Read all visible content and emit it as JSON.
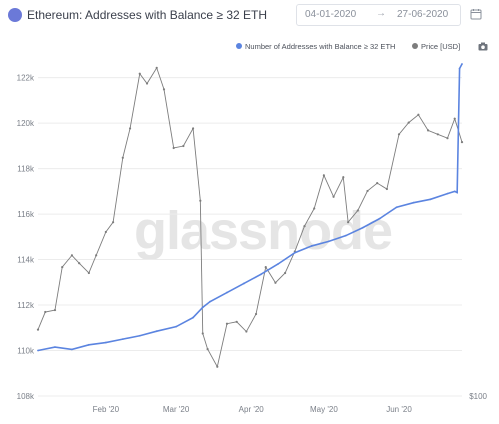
{
  "header": {
    "title": "Ethereum: Addresses with Balance ≥ 32 ETH",
    "date_start": "04-01-2020",
    "date_arrow": "→",
    "date_end": "27-06-2020"
  },
  "legend": {
    "addresses_label": "Number of Addresses with Balance ≥ 32 ETH",
    "price_label": "Price [USD]"
  },
  "watermark": "glassnode",
  "colors": {
    "addresses": "#5b84e0",
    "price": "#7d7d7d",
    "eth_icon": "#6b79d8",
    "grid": "#ececec",
    "axis_text": "#7a7f88"
  },
  "icons": {
    "ethereum": "ethereum-icon",
    "calendar": "calendar-icon",
    "camera": "camera-icon"
  },
  "chart_data": {
    "type": "line",
    "title": "Ethereum: Addresses with Balance ≥ 32 ETH",
    "y_left": {
      "ticks": [
        "108k",
        "110k",
        "112k",
        "114k",
        "116k",
        "118k",
        "120k",
        "122k"
      ],
      "tick_values": [
        108000,
        110000,
        112000,
        114000,
        116000,
        118000,
        120000,
        122000
      ],
      "range": [
        108000,
        122600
      ]
    },
    "y_right": {
      "ticks": [
        "$100"
      ],
      "tick_values": [
        100
      ],
      "range": [
        100,
        270
      ]
    },
    "x_axis": {
      "ticks": [
        "Feb '20",
        "Mar '20",
        "Apr '20",
        "May '20",
        "Jun '20"
      ],
      "tick_dates": [
        "2020-02-01",
        "2020-03-01",
        "2020-04-01",
        "2020-05-01",
        "2020-06-01"
      ],
      "range": [
        "2020-01-04",
        "2020-06-27"
      ]
    },
    "grid": "horizontal",
    "legend_position": "top-right",
    "series": [
      {
        "name": "Number of Addresses with Balance ≥ 32 ETH",
        "axis": "left",
        "x": [
          "2020-01-04",
          "2020-01-11",
          "2020-01-18",
          "2020-01-25",
          "2020-02-01",
          "2020-02-08",
          "2020-02-15",
          "2020-02-22",
          "2020-03-01",
          "2020-03-08",
          "2020-03-12",
          "2020-03-15",
          "2020-03-22",
          "2020-03-29",
          "2020-04-05",
          "2020-04-12",
          "2020-04-19",
          "2020-04-26",
          "2020-05-03",
          "2020-05-10",
          "2020-05-17",
          "2020-05-24",
          "2020-05-31",
          "2020-06-07",
          "2020-06-14",
          "2020-06-21",
          "2020-06-24",
          "2020-06-25",
          "2020-06-26",
          "2020-06-27"
        ],
        "values": [
          110000,
          110150,
          110050,
          110250,
          110350,
          110500,
          110650,
          110850,
          111050,
          111450,
          111900,
          112150,
          112550,
          112950,
          113350,
          113800,
          114300,
          114600,
          114800,
          115050,
          115400,
          115800,
          116300,
          116500,
          116650,
          116900,
          117000,
          116950,
          122400,
          122600
        ]
      },
      {
        "name": "Price [USD]",
        "axis": "right",
        "x": [
          "2020-01-04",
          "2020-01-07",
          "2020-01-11",
          "2020-01-14",
          "2020-01-18",
          "2020-01-21",
          "2020-01-25",
          "2020-01-28",
          "2020-02-01",
          "2020-02-04",
          "2020-02-08",
          "2020-02-11",
          "2020-02-15",
          "2020-02-18",
          "2020-02-22",
          "2020-02-25",
          "2020-02-29",
          "2020-03-04",
          "2020-03-08",
          "2020-03-11",
          "2020-03-12",
          "2020-03-14",
          "2020-03-18",
          "2020-03-22",
          "2020-03-26",
          "2020-03-30",
          "2020-04-03",
          "2020-04-07",
          "2020-04-11",
          "2020-04-15",
          "2020-04-19",
          "2020-04-23",
          "2020-04-27",
          "2020-05-01",
          "2020-05-05",
          "2020-05-09",
          "2020-05-11",
          "2020-05-15",
          "2020-05-19",
          "2020-05-23",
          "2020-05-27",
          "2020-06-01",
          "2020-06-05",
          "2020-06-09",
          "2020-06-13",
          "2020-06-17",
          "2020-06-21",
          "2020-06-24",
          "2020-06-27"
        ],
        "values": [
          134,
          143,
          144,
          166,
          172,
          168,
          163,
          172,
          184,
          189,
          222,
          237,
          265,
          260,
          268,
          257,
          227,
          228,
          237,
          200,
          132,
          124,
          115,
          137,
          138,
          133,
          142,
          166,
          158,
          163,
          174,
          187,
          196,
          213,
          202,
          212,
          189,
          195,
          205,
          209,
          206,
          234,
          240,
          244,
          236,
          234,
          232,
          242,
          230
        ]
      }
    ]
  }
}
